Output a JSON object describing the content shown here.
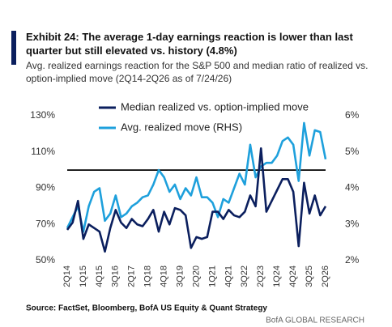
{
  "chart_data": {
    "type": "line",
    "title": "Exhibit 24: The average 1-day earnings reaction is lower than last quarter but still elevated vs. history (4.8%)",
    "subtitle": "Avg. realized earnings reaction for the S&P 500 and median ratio of realized vs. option-implied move (2Q14-2Q26 as of 7/24/26)",
    "source": "Source: FactSet, Bloomberg, BofA US Equity & Quant Strategy",
    "watermark": "BofA GLOBAL RESEARCH",
    "categories": [
      "2Q14",
      null,
      null,
      "1Q15",
      null,
      null,
      "4Q15",
      null,
      null,
      "3Q16",
      null,
      null,
      "2Q17",
      null,
      null,
      "1Q18",
      null,
      null,
      "4Q18",
      null,
      null,
      "3Q19",
      null,
      null,
      "2Q20",
      null,
      null,
      "1Q21",
      null,
      null,
      "4Q21",
      null,
      null,
      "3Q22",
      null,
      null,
      "2Q23",
      null,
      null,
      "1Q24",
      null,
      null,
      "4Q24",
      null,
      null,
      "3Q25",
      null,
      null,
      "2Q26"
    ],
    "ylim": [
      50,
      130
    ],
    "yticks": [
      {
        "value": 50,
        "label": "50%"
      },
      {
        "value": 70,
        "label": "70%"
      },
      {
        "value": 90,
        "label": "90%"
      },
      {
        "value": 110,
        "label": "110%"
      },
      {
        "value": 130,
        "label": "130%"
      }
    ],
    "y2lim": [
      2,
      6
    ],
    "y2ticks": [
      {
        "value": 2,
        "label": "2%"
      },
      {
        "value": 3,
        "label": "3%"
      },
      {
        "value": 4,
        "label": "4%"
      },
      {
        "value": 5,
        "label": "5%"
      },
      {
        "value": 6,
        "label": "6%"
      }
    ],
    "reference_line": 100,
    "legend": "top-left",
    "series": [
      {
        "name": "Median realized vs. option-implied move",
        "color": "#0b1f5e",
        "values": [
          67,
          71,
          83,
          62,
          70,
          68,
          66,
          55,
          68,
          78,
          71,
          68,
          73,
          70,
          69,
          73,
          78,
          66,
          77,
          70,
          79,
          78,
          75,
          57,
          63,
          62,
          63,
          77,
          77,
          73,
          78,
          75,
          74,
          77,
          86,
          80,
          112,
          77,
          83,
          89,
          95,
          95,
          88,
          58,
          93,
          76,
          86,
          75,
          80
        ]
      },
      {
        "name": "Avg. realized move (RHS)",
        "color": "#1ea0dc",
        "axis": "y2",
        "values": [
          2.9,
          3.2,
          3.5,
          2.8,
          3.5,
          3.9,
          4.0,
          3.1,
          3.3,
          3.8,
          3.2,
          3.3,
          3.5,
          3.6,
          3.75,
          3.8,
          4.1,
          4.5,
          4.3,
          3.9,
          4.1,
          3.7,
          4.0,
          3.8,
          4.3,
          3.75,
          3.75,
          3.6,
          3.2,
          3.7,
          3.6,
          4.0,
          4.4,
          4.1,
          5.2,
          4.3,
          4.6,
          4.7,
          4.7,
          4.9,
          5.3,
          5.4,
          5.2,
          4.2,
          5.8,
          4.9,
          5.6,
          5.55,
          4.8
        ]
      }
    ]
  }
}
